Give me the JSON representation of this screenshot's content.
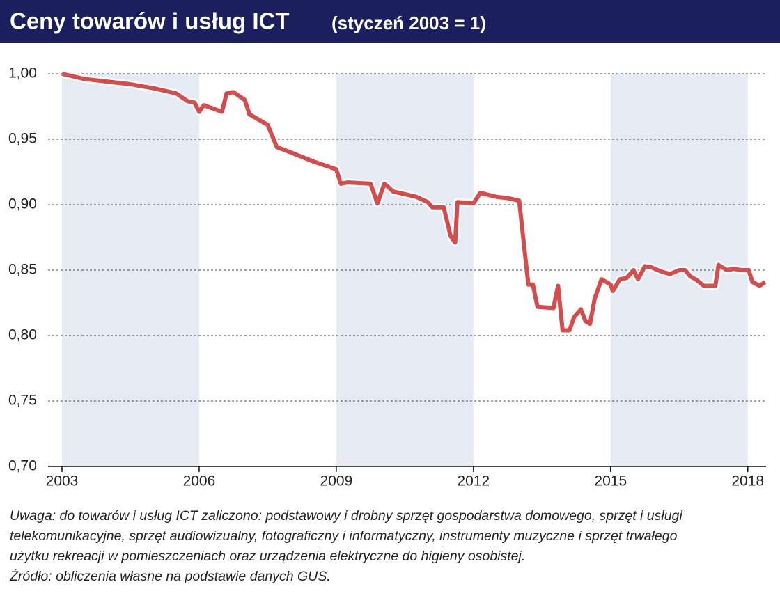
{
  "chart_data": {
    "type": "line",
    "title": "Ceny towarów i usług ICT",
    "subtitle": "(styczeń 2003 = 1)",
    "x": [
      2003.0,
      2003.25,
      2003.5,
      2003.75,
      2004.0,
      2004.5,
      2005.0,
      2005.5,
      2005.75,
      2005.9,
      2006.0,
      2006.1,
      2006.5,
      2006.6,
      2006.75,
      2007.0,
      2007.1,
      2007.5,
      2007.7,
      2008.0,
      2008.5,
      2008.75,
      2009.0,
      2009.1,
      2009.25,
      2009.75,
      2009.9,
      2010.05,
      2010.25,
      2010.75,
      2011.0,
      2011.1,
      2011.35,
      2011.5,
      2011.6,
      2011.65,
      2012.0,
      2012.15,
      2012.5,
      2012.75,
      2013.0,
      2013.2,
      2013.3,
      2013.4,
      2013.75,
      2013.85,
      2013.95,
      2014.1,
      2014.2,
      2014.35,
      2014.45,
      2014.55,
      2014.65,
      2014.8,
      2015.0,
      2015.05,
      2015.2,
      2015.35,
      2015.5,
      2015.6,
      2015.75,
      2015.9,
      2016.1,
      2016.3,
      2016.5,
      2016.63,
      2016.75,
      2016.86,
      2017.04,
      2017.29,
      2017.36,
      2017.54,
      2017.7,
      2017.85,
      2018.02,
      2018.1,
      2018.26,
      2018.38
    ],
    "series": [
      {
        "name": "ICT",
        "color": "#d64b4b",
        "values": [
          1.0,
          0.998,
          0.996,
          0.995,
          0.994,
          0.992,
          0.989,
          0.985,
          0.979,
          0.978,
          0.971,
          0.976,
          0.971,
          0.985,
          0.986,
          0.98,
          0.969,
          0.961,
          0.944,
          0.94,
          0.933,
          0.93,
          0.927,
          0.916,
          0.917,
          0.916,
          0.901,
          0.916,
          0.91,
          0.906,
          0.902,
          0.898,
          0.898,
          0.876,
          0.871,
          0.902,
          0.901,
          0.909,
          0.906,
          0.905,
          0.903,
          0.839,
          0.839,
          0.822,
          0.821,
          0.838,
          0.804,
          0.804,
          0.814,
          0.82,
          0.811,
          0.809,
          0.828,
          0.843,
          0.839,
          0.834,
          0.843,
          0.844,
          0.85,
          0.843,
          0.853,
          0.852,
          0.849,
          0.847,
          0.85,
          0.85,
          0.845,
          0.843,
          0.838,
          0.838,
          0.854,
          0.85,
          0.851,
          0.85,
          0.85,
          0.841,
          0.838,
          0.841
        ]
      }
    ],
    "xlim": [
      2003,
      2018.4
    ],
    "xticks": [
      2003,
      2006,
      2009,
      2012,
      2015,
      2018
    ],
    "ylim": [
      0.7,
      1.0
    ],
    "yticks": [
      {
        "value": 0.7,
        "label": "0,70"
      },
      {
        "value": 0.75,
        "label": "0,75"
      },
      {
        "value": 0.8,
        "label": "0,80"
      },
      {
        "value": 0.85,
        "label": "0,85"
      },
      {
        "value": 0.9,
        "label": "0,90"
      },
      {
        "value": 0.95,
        "label": "0,95"
      },
      {
        "value": 1.0,
        "label": "1,00"
      }
    ],
    "grid": true,
    "note": [
      "Uwaga: do towarów i usług ICT zaliczono: podstawowy i drobny sprzęt gospodarstwa domowego, sprzęt i usługi",
      "telekomunikacyjne, sprzęt audiowizualny, fotograficzny i informatyczny, instrumenty muzyczne i sprzęt trwałego",
      "użytku rekreacji w pomieszczeniach oraz urządzenia elektryczne do higieny osobistej."
    ],
    "source": "Źródło: obliczenia własne na podstawie danych GUS."
  }
}
